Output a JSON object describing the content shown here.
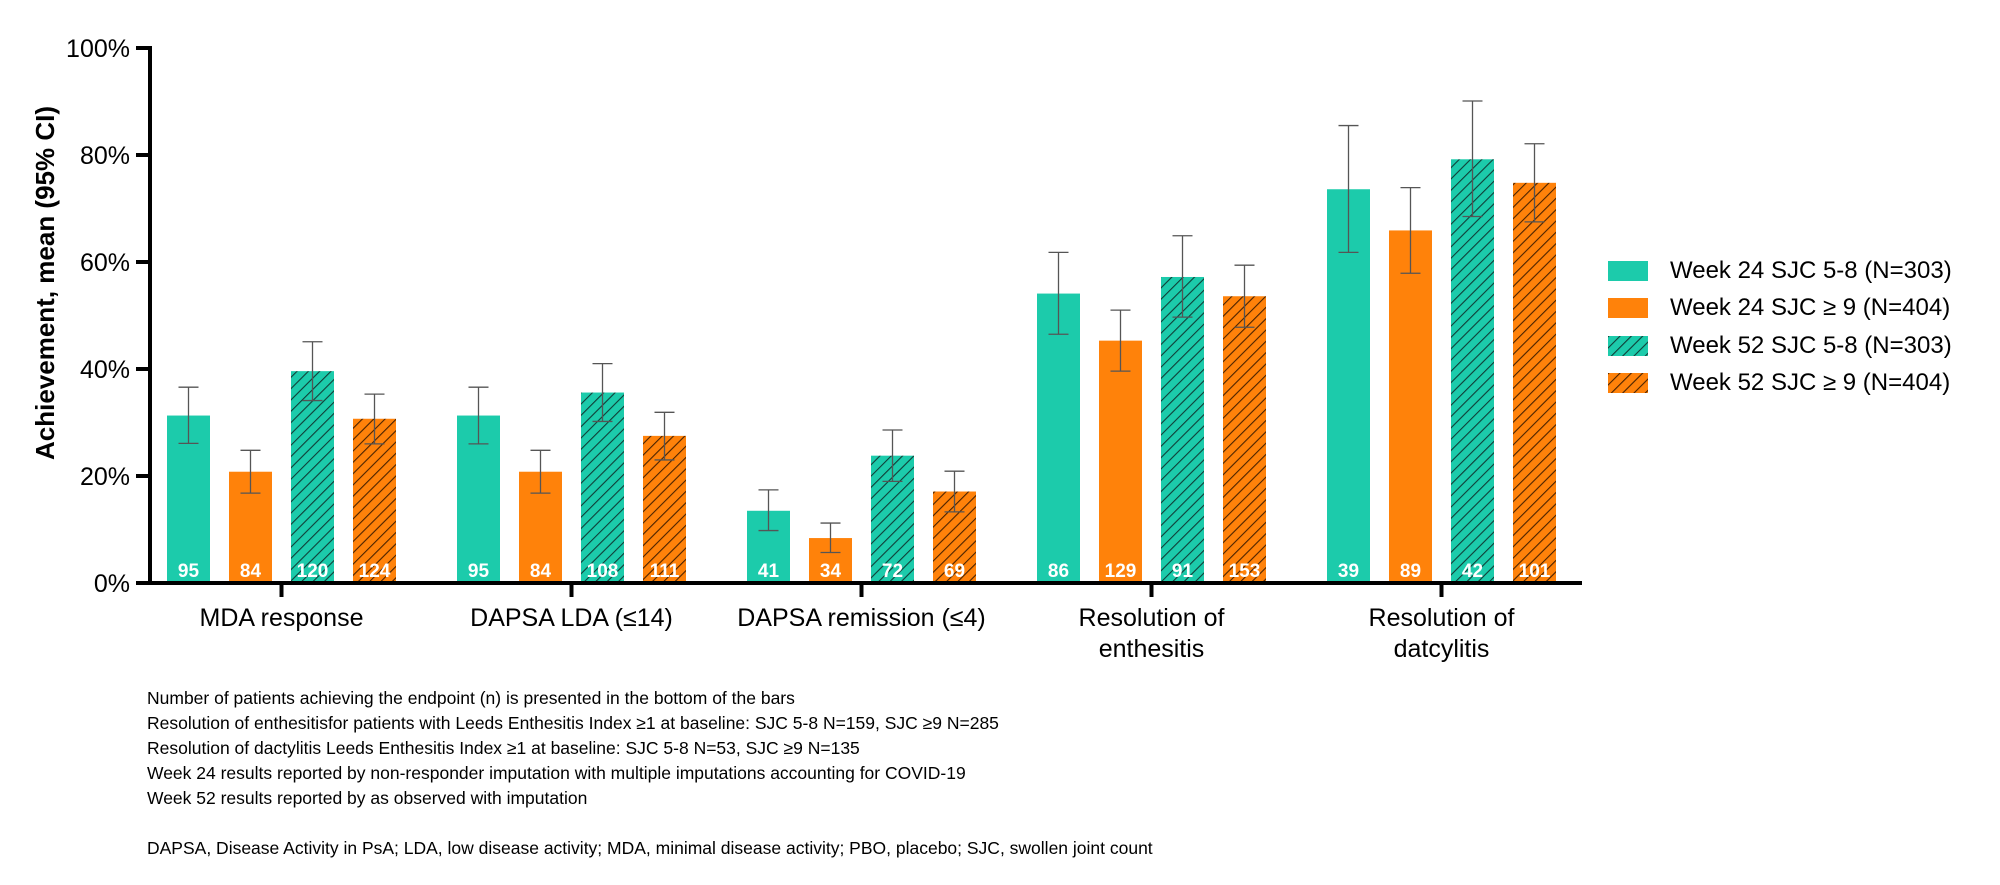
{
  "chart_data": {
    "type": "bar",
    "ylabel": "Achievement, mean  (95% CI)",
    "ylim": [
      0,
      100
    ],
    "yticks": [
      "0%",
      "20%",
      "40%",
      "60%",
      "80%",
      "100%"
    ],
    "categories": [
      [
        "MDA response"
      ],
      [
        "DAPSA LDA (≤14)"
      ],
      [
        "DAPSA remission (≤4)"
      ],
      [
        "Resolution of",
        "enthesitis"
      ],
      [
        "Resolution of",
        "datcylitis"
      ]
    ],
    "series": [
      {
        "name": "Week 24 SJC 5-8 (N=303)",
        "color": "#1ccbab",
        "pattern": "solid",
        "values": [
          31.3,
          31.3,
          13.5,
          54.1,
          73.6
        ],
        "ci_low": [
          26.1,
          26.0,
          9.8,
          46.5,
          61.8
        ],
        "ci_high": [
          36.6,
          36.6,
          17.4,
          61.8,
          85.5
        ],
        "n": [
          "95",
          "95",
          "41",
          "86",
          "39"
        ]
      },
      {
        "name": "Week 24 SJC ≥ 9 (N=404)",
        "color": "#ff820a",
        "pattern": "solid",
        "values": [
          20.8,
          20.8,
          8.4,
          45.3,
          65.9
        ],
        "ci_low": [
          16.8,
          16.8,
          5.7,
          39.6,
          57.9
        ],
        "ci_high": [
          24.8,
          24.8,
          11.2,
          51.0,
          73.9
        ],
        "n": [
          "84",
          "84",
          "34",
          "129",
          "89"
        ]
      },
      {
        "name": "Week 52 SJC 5-8 (N=303)",
        "color": "#1ccbab",
        "pattern": "hatch",
        "values": [
          39.6,
          35.6,
          23.8,
          57.2,
          79.2
        ],
        "ci_low": [
          34.1,
          30.2,
          19.0,
          49.7,
          68.5
        ],
        "ci_high": [
          45.1,
          41.0,
          28.6,
          64.9,
          90.1
        ],
        "n": [
          "120",
          "108",
          "72",
          "91",
          "42"
        ]
      },
      {
        "name": "Week 52 SJC ≥ 9 (N=404)",
        "color": "#ff820a",
        "pattern": "hatch",
        "values": [
          30.7,
          27.5,
          17.1,
          53.6,
          74.8
        ],
        "ci_low": [
          26.0,
          23.0,
          13.3,
          47.8,
          67.5
        ],
        "ci_high": [
          35.3,
          31.9,
          20.9,
          59.4,
          82.1
        ],
        "n": [
          "124",
          "111",
          "69",
          "153",
          "101"
        ]
      }
    ],
    "legend_position": "right"
  },
  "footnotes": [
    "Number of patients achieving the endpoint (n) is presented in the bottom of the bars",
    "Resolution of enthesitisfor patients with Leeds Enthesitis Index ≥1 at baseline: SJC 5-8 N=159, SJC ≥9 N=285",
    "Resolution of dactylitis Leeds Enthesitis Index ≥1 at baseline: SJC 5-8 N=53, SJC ≥9 N=135",
    "Week 24 results reported by non-responder imputation with multiple imputations accounting for COVID-19",
    "Week 52 results reported by as observed with imputation"
  ],
  "abbreviations": "DAPSA, Disease Activity in PsA; LDA, low disease activity; MDA, minimal disease activity; PBO, placebo; SJC, swollen joint count"
}
